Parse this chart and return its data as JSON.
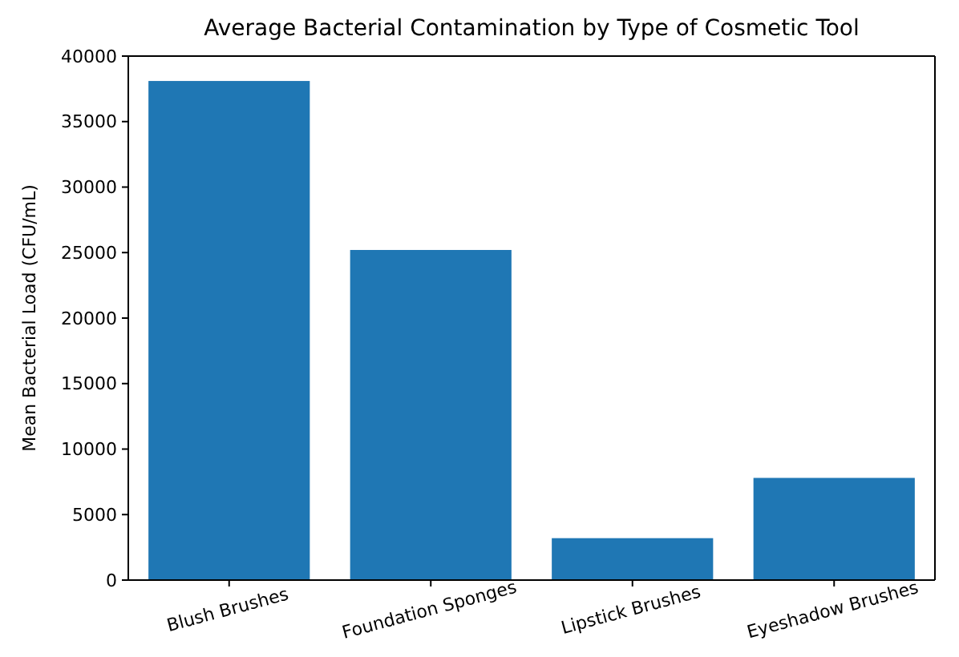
{
  "chart_data": {
    "type": "bar",
    "title": "Average Bacterial Contamination by Type of Cosmetic Tool",
    "ylabel": "Mean Bacterial Load (CFU/mL)",
    "categories": [
      "Blush Brushes",
      "Foundation Sponges",
      "Lipstick Brushes",
      "Eyeshadow Brushes"
    ],
    "values": [
      38100,
      25200,
      3200,
      7800
    ],
    "color": "#1f77b4",
    "ylim": [
      0,
      40000
    ],
    "yticks": [
      0,
      5000,
      10000,
      15000,
      20000,
      25000,
      30000,
      35000,
      40000
    ],
    "grid": false
  }
}
